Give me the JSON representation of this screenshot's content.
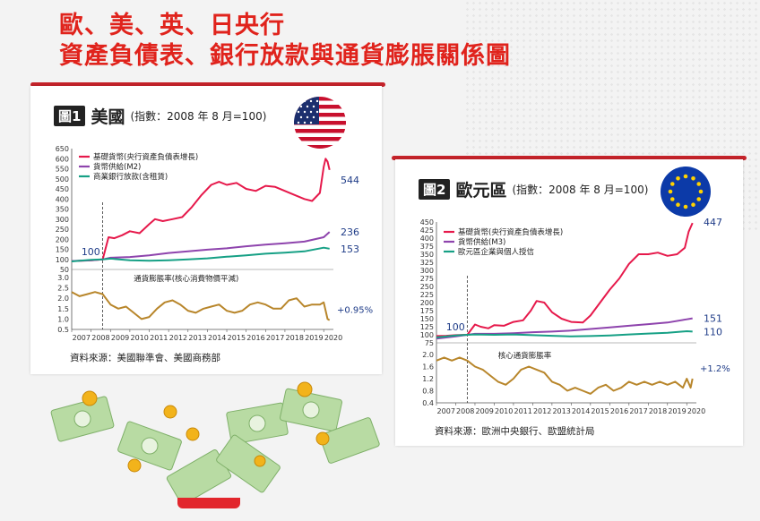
{
  "header": {
    "title_line1": "歐、美、英、日央行",
    "title_line2": "資產負債表、銀行放款與通貨膨脹關係圖"
  },
  "colors": {
    "title": "#e0231c",
    "base_money": "#e6194b",
    "money_supply": "#8e44ad",
    "bank_lending": "#16a085",
    "inflation": "#b8862b",
    "end_label": "#1f3c88"
  },
  "icons": [
    "us-flag-icon",
    "eu-flag-icon",
    "dollar-banknote-icon",
    "gold-coin-icon"
  ],
  "panels": {
    "us": {
      "badge": "圖1",
      "region": "美國",
      "index_note": "(指數：2008 年 8 月=100)",
      "source": "資料來源：美國聯準會、美國商務部"
    },
    "eu": {
      "badge": "圖2",
      "region": "歐元區",
      "index_note": "(指數：2008 年 8 月=100)",
      "source": "資料來源：歐洲中央銀行、歐盟統計局"
    }
  },
  "chart_data": [
    {
      "type": "line",
      "x_ticks": [
        "2007",
        "2008",
        "2009",
        "2010",
        "2011",
        "2012",
        "2013",
        "2014",
        "2015",
        "2016",
        "2017",
        "2018",
        "2019",
        "2020"
      ],
      "top": {
        "ylim": [
          50,
          650
        ],
        "y_ticks": [
          50,
          100,
          150,
          200,
          250,
          300,
          350,
          400,
          450,
          500,
          550,
          600,
          650
        ],
        "baseline_label": "100",
        "series": [
          {
            "name": "基礎貨幣(央行資產負債表增長)",
            "color": "#e6194b",
            "end_label": "544",
            "x": [
              2007.0,
              2007.5,
              2008.0,
              2008.6,
              2008.9,
              2009.2,
              2009.6,
              2010.0,
              2010.5,
              2011.0,
              2011.3,
              2011.7,
              2012.2,
              2012.7,
              2013.2,
              2013.7,
              2014.2,
              2014.6,
              2015.0,
              2015.5,
              2016.0,
              2016.5,
              2017.0,
              2017.5,
              2018.0,
              2018.5,
              2019.0,
              2019.4,
              2019.8,
              2020.0,
              2020.1,
              2020.2,
              2020.3
            ],
            "y": [
              92,
              93,
              95,
              100,
              210,
              205,
              220,
              240,
              230,
              275,
              300,
              290,
              300,
              310,
              360,
              420,
              470,
              485,
              470,
              480,
              450,
              440,
              465,
              460,
              440,
              420,
              400,
              390,
              430,
              560,
              600,
              585,
              544
            ]
          },
          {
            "name": "貨幣供給(M2)",
            "color": "#8e44ad",
            "end_label": "236",
            "x": [
              2007,
              2008,
              2008.6,
              2009,
              2010,
              2011,
              2012,
              2013,
              2014,
              2015,
              2016,
              2017,
              2018,
              2019,
              2020,
              2020.3
            ],
            "y": [
              92,
              96,
              100,
              108,
              112,
              120,
              132,
              140,
              148,
              155,
              165,
              173,
              180,
              188,
              210,
              236
            ]
          },
          {
            "name": "商業銀行放款(含租賃)",
            "color": "#16a085",
            "end_label": "153",
            "x": [
              2007,
              2008,
              2008.6,
              2009,
              2010,
              2011,
              2012,
              2013,
              2014,
              2015,
              2016,
              2017,
              2018,
              2019,
              2020,
              2020.3
            ],
            "y": [
              90,
              98,
              100,
              104,
              96,
              93,
              96,
              100,
              105,
              113,
              120,
              128,
              133,
              140,
              158,
              153
            ]
          }
        ]
      },
      "bottom": {
        "ylim": [
          0.5,
          3.0
        ],
        "y_ticks": [
          0.5,
          1.0,
          1.5,
          2.0,
          2.5,
          3.0
        ],
        "series": [
          {
            "name": "通貨膨脹率(核心消費物價平減)",
            "color": "#b8862b",
            "end_label": "+0.95%",
            "x": [
              2007.0,
              2007.4,
              2007.8,
              2008.2,
              2008.6,
              2009.0,
              2009.4,
              2009.8,
              2010.2,
              2010.6,
              2011.0,
              2011.4,
              2011.8,
              2012.2,
              2012.6,
              2013.0,
              2013.4,
              2013.8,
              2014.2,
              2014.6,
              2015.0,
              2015.4,
              2015.8,
              2016.2,
              2016.6,
              2017.0,
              2017.4,
              2017.8,
              2018.2,
              2018.6,
              2019.0,
              2019.4,
              2019.8,
              2020.0,
              2020.2,
              2020.3
            ],
            "y": [
              2.3,
              2.1,
              2.2,
              2.3,
              2.2,
              1.7,
              1.5,
              1.6,
              1.3,
              1.0,
              1.1,
              1.5,
              1.8,
              1.9,
              1.7,
              1.4,
              1.3,
              1.5,
              1.6,
              1.7,
              1.4,
              1.3,
              1.4,
              1.7,
              1.8,
              1.7,
              1.5,
              1.5,
              1.9,
              2.0,
              1.6,
              1.7,
              1.7,
              1.8,
              1.0,
              0.95
            ]
          }
        ]
      }
    },
    {
      "type": "line",
      "x_ticks": [
        "2007",
        "2008",
        "2009",
        "2010",
        "2011",
        "2012",
        "2013",
        "2014",
        "2015",
        "2016",
        "2017",
        "2018",
        "2019",
        "2020"
      ],
      "top": {
        "ylim": [
          75,
          450
        ],
        "y_ticks": [
          75,
          100,
          125,
          150,
          175,
          200,
          225,
          250,
          275,
          300,
          325,
          350,
          375,
          400,
          425,
          450
        ],
        "baseline_label": "100",
        "series": [
          {
            "name": "基礎貨幣(央行資產負債表增長)",
            "color": "#e6194b",
            "end_label": "447",
            "x": [
              2007.0,
              2007.5,
              2008.0,
              2008.6,
              2009.0,
              2009.3,
              2009.7,
              2010.0,
              2010.5,
              2011.0,
              2011.5,
              2011.9,
              2012.2,
              2012.6,
              2013.0,
              2013.5,
              2014.0,
              2014.6,
              2015.0,
              2015.5,
              2016.0,
              2016.5,
              2017.0,
              2017.5,
              2018.0,
              2018.5,
              2019.0,
              2019.5,
              2019.9,
              2020.1,
              2020.3
            ],
            "y": [
              96,
              97,
              99,
              100,
              132,
              125,
              120,
              130,
              128,
              140,
              145,
              175,
              205,
              200,
              170,
              150,
              140,
              138,
              160,
              200,
              240,
              275,
              320,
              350,
              350,
              355,
              345,
              350,
              370,
              420,
              447
            ]
          },
          {
            "name": "貨幣供給(M3)",
            "color": "#8e44ad",
            "end_label": "151",
            "x": [
              2007,
              2008,
              2008.6,
              2009,
              2010,
              2011,
              2012,
              2013,
              2014,
              2015,
              2016,
              2017,
              2018,
              2019,
              2020,
              2020.3
            ],
            "y": [
              88,
              95,
              100,
              103,
              103,
              105,
              108,
              110,
              113,
              118,
              123,
              128,
              133,
              138,
              148,
              151
            ]
          },
          {
            "name": "歐元區企業與個人授信",
            "color": "#16a085",
            "end_label": "110",
            "x": [
              2007,
              2008,
              2008.6,
              2009,
              2010,
              2011,
              2012,
              2013,
              2014,
              2015,
              2016,
              2017,
              2018,
              2019,
              2020,
              2020.3
            ],
            "y": [
              92,
              98,
              100,
              101,
              100,
              101,
              99,
              97,
              95,
              96,
              98,
              101,
              104,
              106,
              111,
              110
            ]
          }
        ]
      },
      "bottom": {
        "ylim": [
          0.4,
          2.0
        ],
        "y_ticks": [
          0.4,
          0.8,
          1.2,
          1.6,
          2.0
        ],
        "series": [
          {
            "name": "核心通貨膨脹率",
            "color": "#b8862b",
            "end_label": "+1.2%",
            "x": [
              2007.0,
              2007.4,
              2007.8,
              2008.2,
              2008.6,
              2009.0,
              2009.4,
              2009.8,
              2010.2,
              2010.6,
              2011.0,
              2011.4,
              2011.8,
              2012.2,
              2012.6,
              2013.0,
              2013.4,
              2013.8,
              2014.2,
              2014.6,
              2015.0,
              2015.4,
              2015.8,
              2016.2,
              2016.6,
              2017.0,
              2017.4,
              2017.8,
              2018.2,
              2018.6,
              2019.0,
              2019.4,
              2019.8,
              2020.0,
              2020.2,
              2020.3
            ],
            "y": [
              1.8,
              1.9,
              1.8,
              1.9,
              1.8,
              1.6,
              1.5,
              1.3,
              1.1,
              1.0,
              1.2,
              1.5,
              1.6,
              1.5,
              1.4,
              1.1,
              1.0,
              0.8,
              0.9,
              0.8,
              0.7,
              0.9,
              1.0,
              0.8,
              0.9,
              1.1,
              1.0,
              1.1,
              1.0,
              1.1,
              1.0,
              1.1,
              0.9,
              1.2,
              0.9,
              1.2
            ]
          }
        ]
      }
    }
  ]
}
